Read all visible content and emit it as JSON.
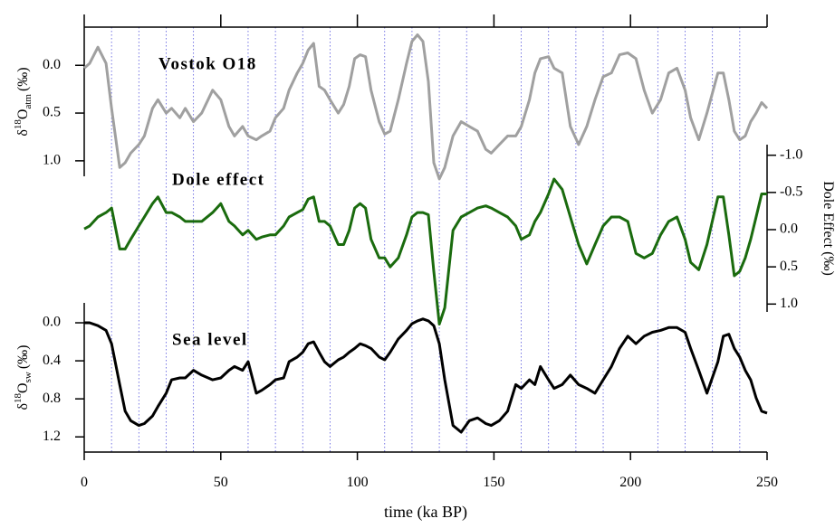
{
  "chart_data": {
    "type": "line",
    "x_label": "time (ka BP)",
    "xlim": [
      0,
      250
    ],
    "xticks": [
      0,
      50,
      100,
      150,
      200,
      250
    ],
    "xgrid": [
      10,
      20,
      30,
      40,
      60,
      70,
      80,
      90,
      110,
      120,
      130,
      140,
      160,
      170,
      180,
      190,
      210,
      220,
      230,
      240
    ],
    "x": [
      0,
      2,
      5,
      8,
      10,
      13,
      15,
      17,
      20,
      22,
      25,
      27,
      30,
      32,
      35,
      37,
      40,
      43,
      47,
      50,
      53,
      55,
      58,
      60,
      63,
      65,
      68,
      70,
      73,
      75,
      78,
      80,
      82,
      84,
      86,
      88,
      90,
      93,
      95,
      97,
      99,
      101,
      103,
      105,
      108,
      110,
      112,
      115,
      118,
      120,
      122,
      124,
      126,
      128,
      130,
      132,
      135,
      138,
      141,
      144,
      147,
      149,
      152,
      155,
      158,
      160,
      163,
      165,
      167,
      170,
      172,
      175,
      178,
      181,
      184,
      187,
      190,
      193,
      196,
      199,
      202,
      205,
      208,
      211,
      214,
      217,
      220,
      222,
      225,
      228,
      232,
      234,
      236,
      238,
      240,
      242,
      244,
      246,
      248,
      250
    ],
    "series": [
      {
        "name": "Vostok O18",
        "color": "#a0a0a0",
        "axis_side": "left",
        "inverted": true,
        "ylim": [
          -0.4,
          1.2
        ],
        "yticks": [
          {
            "value": 0,
            "label": "0.0"
          },
          0.5,
          {
            "value": 1,
            "label": "1.0"
          }
        ],
        "y_label": {
          "symbol": "δ",
          "isotope": "18",
          "element": "O",
          "subscript": "atm",
          "unit": "(‰)"
        },
        "values": [
          0.03,
          -0.02,
          -0.19,
          -0.02,
          0.45,
          1.07,
          1.02,
          0.92,
          0.83,
          0.74,
          0.45,
          0.36,
          0.5,
          0.45,
          0.55,
          0.45,
          0.59,
          0.5,
          0.26,
          0.36,
          0.64,
          0.74,
          0.64,
          0.74,
          0.78,
          0.74,
          0.69,
          0.55,
          0.45,
          0.26,
          0.08,
          -0.02,
          -0.16,
          -0.23,
          0.22,
          0.26,
          0.36,
          0.5,
          0.41,
          0.22,
          -0.07,
          -0.11,
          -0.09,
          0.26,
          0.59,
          0.72,
          0.69,
          0.36,
          -0.02,
          -0.25,
          -0.32,
          -0.25,
          0.17,
          1.02,
          1.19,
          1.07,
          0.74,
          0.59,
          0.64,
          0.69,
          0.88,
          0.92,
          0.83,
          0.74,
          0.74,
          0.64,
          0.36,
          0.08,
          -0.07,
          -0.09,
          0.03,
          0.08,
          0.64,
          0.83,
          0.64,
          0.36,
          0.12,
          0.08,
          -0.11,
          -0.13,
          -0.07,
          0.26,
          0.5,
          0.36,
          0.08,
          0.03,
          0.26,
          0.55,
          0.78,
          0.5,
          0.08,
          0.08,
          0.36,
          0.69,
          0.78,
          0.74,
          0.59,
          0.5,
          0.39,
          0.45
        ]
      },
      {
        "name": "Dole effect",
        "color": "#1a6b0e",
        "axis_side": "right",
        "inverted": true,
        "ylim": [
          -1.3,
          1.3
        ],
        "yticks": [
          {
            "value": -1,
            "label": "-1.0"
          },
          -0.5,
          {
            "value": 0,
            "label": "0.0"
          },
          0.5,
          {
            "value": 1,
            "label": "1.0"
          }
        ],
        "y_label": {
          "text": "Dole Effect (‰)"
        },
        "values": [
          -0.01,
          -0.05,
          -0.17,
          -0.23,
          -0.29,
          0.26,
          0.26,
          0.13,
          -0.05,
          -0.17,
          -0.35,
          -0.44,
          -0.23,
          -0.23,
          -0.17,
          -0.11,
          -0.11,
          -0.11,
          -0.23,
          -0.35,
          -0.11,
          -0.05,
          0.07,
          0.01,
          0.13,
          0.1,
          0.07,
          0.07,
          -0.05,
          -0.17,
          -0.23,
          -0.27,
          -0.41,
          -0.44,
          -0.11,
          -0.11,
          -0.05,
          0.2,
          0.2,
          0.01,
          -0.29,
          -0.35,
          -0.29,
          0.13,
          0.38,
          0.38,
          0.5,
          0.38,
          0.07,
          -0.17,
          -0.23,
          -0.23,
          -0.2,
          0.56,
          1.27,
          1.05,
          0.01,
          -0.17,
          -0.23,
          -0.29,
          -0.32,
          -0.29,
          -0.23,
          -0.17,
          -0.05,
          0.13,
          0.07,
          -0.11,
          -0.23,
          -0.48,
          -0.68,
          -0.54,
          -0.17,
          0.2,
          0.46,
          0.2,
          -0.05,
          -0.17,
          -0.17,
          -0.11,
          0.32,
          0.38,
          0.32,
          0.07,
          -0.11,
          -0.17,
          0.13,
          0.44,
          0.54,
          0.2,
          -0.44,
          -0.44,
          0.07,
          0.62,
          0.56,
          0.38,
          0.13,
          -0.17,
          -0.48,
          -0.48
        ]
      },
      {
        "name": "Sea level",
        "color": "#000000",
        "axis_side": "left",
        "inverted": true,
        "ylim": [
          -0.2,
          1.35
        ],
        "yticks": [
          {
            "value": 0,
            "label": "0.0"
          },
          0.4,
          0.8,
          1.2
        ],
        "y_label": {
          "symbol": "δ",
          "isotope": "18",
          "element": "O",
          "subscript": "sw",
          "unit": "(‰)"
        },
        "values": [
          0,
          0,
          0.03,
          0.08,
          0.22,
          0.65,
          0.93,
          1.03,
          1.08,
          1.06,
          0.98,
          0.88,
          0.74,
          0.6,
          0.58,
          0.58,
          0.5,
          0.55,
          0.6,
          0.58,
          0.5,
          0.46,
          0.5,
          0.41,
          0.74,
          0.71,
          0.65,
          0.6,
          0.58,
          0.41,
          0.36,
          0.31,
          0.22,
          0.2,
          0.31,
          0.41,
          0.46,
          0.39,
          0.36,
          0.31,
          0.27,
          0.22,
          0.24,
          0.27,
          0.36,
          0.39,
          0.31,
          0.17,
          0.08,
          0.01,
          -0.02,
          -0.04,
          -0.02,
          0.03,
          0.22,
          0.6,
          1.08,
          1.15,
          1.03,
          1.0,
          1.06,
          1.08,
          1.03,
          0.93,
          0.65,
          0.69,
          0.6,
          0.65,
          0.46,
          0.6,
          0.69,
          0.65,
          0.55,
          0.65,
          0.69,
          0.74,
          0.6,
          0.46,
          0.27,
          0.14,
          0.22,
          0.14,
          0.1,
          0.08,
          0.05,
          0.05,
          0.1,
          0.27,
          0.5,
          0.74,
          0.41,
          0.14,
          0.12,
          0.27,
          0.36,
          0.5,
          0.6,
          0.79,
          0.93,
          0.95
        ]
      }
    ]
  }
}
